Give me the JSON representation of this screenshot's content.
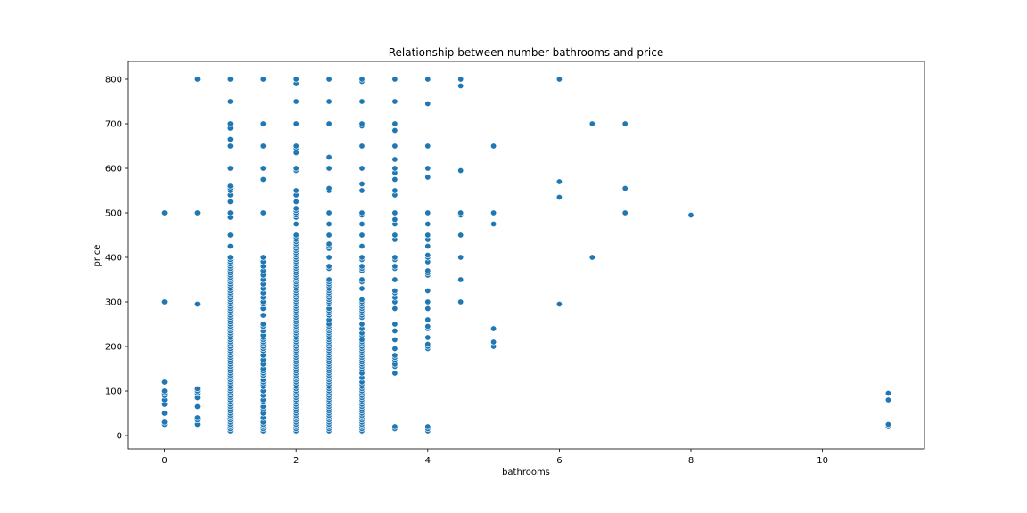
{
  "chart_data": {
    "type": "scatter",
    "title": "Relationship between number bathrooms and price",
    "xlabel": "bathrooms",
    "ylabel": "price",
    "xlim": [
      -0.55,
      11.55
    ],
    "ylim": [
      -30,
      840
    ],
    "xticks": [
      0,
      2,
      4,
      6,
      8,
      10
    ],
    "yticks": [
      0,
      100,
      200,
      300,
      400,
      500,
      600,
      700,
      800
    ],
    "grid": false,
    "color": "#1f77b4",
    "groups": [
      {
        "x": 0,
        "y": [
          25,
          30,
          50,
          70,
          80,
          90,
          95,
          100,
          120,
          300,
          500
        ]
      },
      {
        "x": 0.5,
        "y": [
          25,
          35,
          40,
          65,
          85,
          95,
          100,
          105,
          295,
          500,
          800
        ]
      },
      {
        "x": 1,
        "y": [
          10,
          15,
          20,
          25,
          30,
          35,
          40,
          45,
          50,
          55,
          60,
          65,
          70,
          75,
          80,
          85,
          90,
          95,
          100,
          105,
          110,
          115,
          120,
          125,
          130,
          135,
          140,
          145,
          150,
          155,
          160,
          165,
          170,
          175,
          180,
          185,
          190,
          195,
          200,
          205,
          210,
          215,
          220,
          225,
          230,
          235,
          240,
          245,
          250,
          255,
          260,
          265,
          270,
          275,
          280,
          285,
          290,
          295,
          300,
          305,
          310,
          315,
          320,
          325,
          330,
          335,
          340,
          345,
          350,
          355,
          360,
          365,
          370,
          375,
          380,
          385,
          390,
          395,
          400,
          425,
          450,
          490,
          500,
          525,
          540,
          550,
          555,
          560,
          600,
          650,
          665,
          690,
          700,
          750,
          800
        ]
      },
      {
        "x": 1.5,
        "y": [
          10,
          15,
          20,
          25,
          30,
          40,
          50,
          60,
          65,
          75,
          80,
          90,
          100,
          110,
          115,
          120,
          125,
          135,
          140,
          145,
          150,
          160,
          170,
          180,
          190,
          195,
          200,
          205,
          210,
          215,
          220,
          225,
          235,
          245,
          250,
          270,
          285,
          295,
          300,
          310,
          320,
          330,
          340,
          350,
          360,
          370,
          380,
          390,
          400,
          500,
          575,
          600,
          650,
          700,
          800
        ]
      },
      {
        "x": 2,
        "y": [
          10,
          15,
          20,
          25,
          30,
          35,
          40,
          45,
          50,
          55,
          60,
          65,
          70,
          75,
          80,
          85,
          90,
          95,
          100,
          105,
          110,
          115,
          120,
          125,
          130,
          135,
          140,
          145,
          150,
          155,
          160,
          165,
          170,
          175,
          180,
          185,
          190,
          195,
          200,
          205,
          210,
          215,
          220,
          225,
          230,
          235,
          240,
          245,
          250,
          255,
          260,
          265,
          270,
          275,
          280,
          285,
          290,
          295,
          300,
          305,
          310,
          315,
          320,
          325,
          330,
          335,
          340,
          345,
          350,
          355,
          360,
          365,
          370,
          375,
          380,
          385,
          390,
          395,
          400,
          405,
          410,
          415,
          420,
          425,
          430,
          435,
          440,
          445,
          450,
          475,
          490,
          495,
          500,
          505,
          510,
          525,
          540,
          550,
          595,
          600,
          635,
          645,
          650,
          700,
          750,
          790,
          800
        ]
      },
      {
        "x": 2.5,
        "y": [
          10,
          15,
          20,
          25,
          30,
          35,
          40,
          45,
          50,
          55,
          60,
          65,
          70,
          75,
          80,
          85,
          90,
          95,
          100,
          105,
          110,
          115,
          120,
          125,
          130,
          135,
          140,
          145,
          150,
          155,
          160,
          165,
          170,
          175,
          180,
          185,
          190,
          195,
          200,
          205,
          210,
          215,
          220,
          225,
          230,
          235,
          240,
          245,
          250,
          260,
          270,
          275,
          280,
          285,
          295,
          300,
          305,
          310,
          315,
          320,
          325,
          330,
          335,
          340,
          345,
          350,
          375,
          380,
          400,
          420,
          425,
          430,
          450,
          475,
          500,
          550,
          555,
          600,
          625,
          700,
          750,
          800
        ]
      },
      {
        "x": 3,
        "y": [
          10,
          15,
          20,
          25,
          30,
          35,
          40,
          45,
          50,
          55,
          60,
          65,
          70,
          75,
          80,
          85,
          90,
          95,
          100,
          105,
          110,
          115,
          120,
          130,
          140,
          150,
          155,
          160,
          165,
          170,
          175,
          180,
          185,
          190,
          195,
          200,
          205,
          210,
          215,
          225,
          230,
          240,
          250,
          265,
          270,
          275,
          280,
          285,
          290,
          295,
          300,
          305,
          330,
          345,
          350,
          370,
          375,
          380,
          395,
          400,
          425,
          450,
          475,
          495,
          500,
          550,
          565,
          600,
          650,
          695,
          700,
          750,
          795,
          800
        ]
      },
      {
        "x": 3.5,
        "y": [
          15,
          20,
          140,
          155,
          160,
          170,
          175,
          180,
          195,
          215,
          235,
          250,
          285,
          300,
          310,
          320,
          325,
          350,
          375,
          380,
          395,
          400,
          440,
          450,
          475,
          485,
          500,
          540,
          550,
          575,
          590,
          600,
          620,
          650,
          685,
          700,
          750,
          800
        ]
      },
      {
        "x": 4,
        "y": [
          10,
          15,
          20,
          195,
          200,
          205,
          220,
          240,
          245,
          260,
          285,
          300,
          325,
          360,
          365,
          370,
          390,
          400,
          405,
          425,
          440,
          450,
          475,
          500,
          580,
          600,
          650,
          745,
          800
        ]
      },
      {
        "x": 4.5,
        "y": [
          300,
          350,
          400,
          450,
          495,
          500,
          595,
          785,
          800
        ]
      },
      {
        "x": 5,
        "y": [
          200,
          210,
          240,
          475,
          500,
          650
        ]
      },
      {
        "x": 6,
        "y": [
          295,
          535,
          570,
          800
        ]
      },
      {
        "x": 6.5,
        "y": [
          400,
          700
        ]
      },
      {
        "x": 7,
        "y": [
          500,
          555,
          700
        ]
      },
      {
        "x": 8,
        "y": [
          495
        ]
      },
      {
        "x": 11,
        "y": [
          20,
          25,
          80,
          95
        ]
      }
    ]
  }
}
